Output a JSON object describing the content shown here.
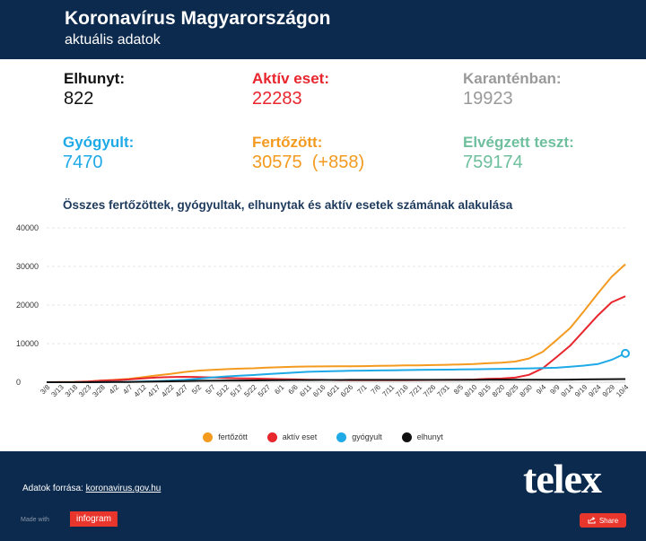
{
  "header": {
    "title": "Koronavírus Magyarországon",
    "subtitle": "aktuális adatok"
  },
  "stats": [
    {
      "label": "Elhunyt:",
      "value": "822",
      "label_color": "#111111",
      "value_color": "#111111"
    },
    {
      "label": "Aktív eset:",
      "value": "22283",
      "label_color": "#e8262e",
      "value_color": "#e8262e"
    },
    {
      "label": "Karanténban:",
      "value": "19923",
      "label_color": "#9a9a9a",
      "value_color": "#9a9a9a"
    },
    {
      "label": "Gyógyult:",
      "value": "7470",
      "label_color": "#1eaae7",
      "value_color": "#1eaae7"
    },
    {
      "label": "Fertőzött:",
      "value": "30575  (+858)",
      "label_color": "#f39a1f",
      "value_color": "#f39a1f"
    },
    {
      "label": "Elvégzett teszt:",
      "value": "759174",
      "label_color": "#6dbf9d",
      "value_color": "#6dbf9d"
    }
  ],
  "chart_data": {
    "type": "line",
    "title": "Összes fertőzöttek, gyógyultak, elhunytak és aktív esetek számának alakulása",
    "xlabel": "",
    "ylabel": "",
    "ylim": [
      0,
      40000
    ],
    "yticks": [
      0,
      10000,
      20000,
      30000,
      40000
    ],
    "grid": true,
    "legend_position": "bottom",
    "x": [
      "3/8",
      "3/13",
      "3/18",
      "3/23",
      "3/28",
      "4/2",
      "4/7",
      "4/12",
      "4/17",
      "4/22",
      "4/27",
      "5/2",
      "5/7",
      "5/12",
      "5/17",
      "5/22",
      "5/27",
      "6/1",
      "6/6",
      "6/11",
      "6/16",
      "6/21",
      "6/26",
      "7/1",
      "7/6",
      "7/11",
      "7/16",
      "7/21",
      "7/26",
      "7/31",
      "8/5",
      "8/10",
      "8/15",
      "8/20",
      "8/25",
      "8/30",
      "9/4",
      "9/9",
      "9/14",
      "9/19",
      "9/24",
      "9/29",
      "10/4"
    ],
    "series": [
      {
        "name": "fertőzött",
        "color": "#f39a1f",
        "values": [
          0,
          13,
          58,
          167,
          447,
          623,
          895,
          1310,
          1763,
          2168,
          2649,
          2998,
          3213,
          3380,
          3509,
          3607,
          3793,
          3892,
          4008,
          4079,
          4096,
          4107,
          4138,
          4166,
          4247,
          4279,
          4339,
          4366,
          4448,
          4505,
          4611,
          4696,
          4916,
          5046,
          5353,
          6139,
          7892,
          10909,
          14068,
          18448,
          23006,
          27309,
          30575
        ]
      },
      {
        "name": "aktív eset",
        "color": "#e8262e",
        "values": [
          0,
          13,
          56,
          158,
          410,
          530,
          730,
          1000,
          1200,
          1330,
          1400,
          1330,
          1200,
          1100,
          1000,
          950,
          850,
          780,
          720,
          660,
          600,
          560,
          520,
          500,
          510,
          520,
          540,
          560,
          580,
          610,
          650,
          700,
          860,
          960,
          1180,
          1900,
          3600,
          6500,
          9500,
          13400,
          17300,
          20700,
          22283
        ]
      },
      {
        "name": "gyógyult",
        "color": "#1eaae7",
        "values": [
          0,
          0,
          1,
          7,
          21,
          50,
          100,
          200,
          300,
          450,
          600,
          900,
          1200,
          1500,
          1700,
          1850,
          2100,
          2300,
          2500,
          2700,
          2800,
          2880,
          2950,
          3000,
          3050,
          3100,
          3150,
          3180,
          3230,
          3260,
          3310,
          3350,
          3400,
          3470,
          3520,
          3580,
          3640,
          3750,
          4000,
          4300,
          4700,
          5800,
          7470
        ]
      },
      {
        "name": "elhunyt",
        "color": "#111111",
        "values": [
          0,
          0,
          1,
          2,
          16,
          43,
          65,
          110,
          163,
          239,
          312,
          383,
          413,
          433,
          449,
          462,
          490,
          527,
          551,
          561,
          571,
          584,
          595,
          596,
          599,
          600,
          603,
          606,
          607,
          609,
          612,
          614,
          618,
          619,
          623,
          626,
          631,
          650,
          680,
          715,
          760,
          790,
          822
        ]
      }
    ]
  },
  "footer": {
    "source_label": "Adatok forrása:",
    "source_link": "koronavirus.gov.hu",
    "brand": "telex",
    "made_with": "Made with",
    "infogram": "infogram",
    "share": "Share"
  }
}
